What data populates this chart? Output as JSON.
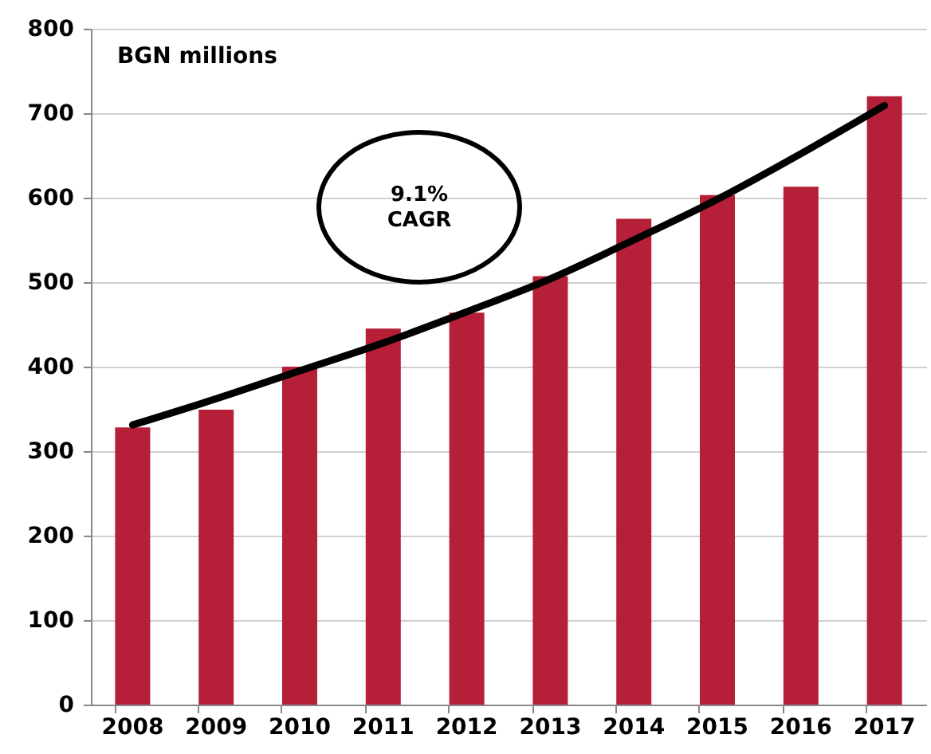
{
  "chart_data": {
    "type": "bar",
    "ylabel": "BGN millions",
    "categories": [
      "2008",
      "2009",
      "2010",
      "2011",
      "2012",
      "2013",
      "2014",
      "2015",
      "2016",
      "2017"
    ],
    "series": [
      {
        "color": "#b51f38",
        "values": [
          328,
          349,
          400,
          445,
          464,
          507,
          575,
          603,
          613,
          720
        ]
      },
      {
        "type": "line",
        "color": "#000000",
        "values": [
          331,
          362,
          395,
          428,
          465,
          504,
          550,
          598,
          652,
          709
        ]
      }
    ],
    "annotations": [
      "9.1%\nCAGR"
    ],
    "ylim": [
      0,
      800
    ],
    "yticks": [
      0,
      100,
      200,
      300,
      400,
      500,
      600,
      700,
      800
    ],
    "grid": "y",
    "marker": "none",
    "line_style": "solid"
  }
}
